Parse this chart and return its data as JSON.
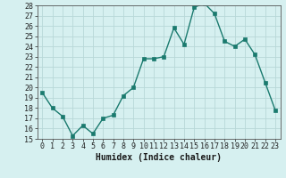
{
  "x": [
    0,
    1,
    2,
    3,
    4,
    5,
    6,
    7,
    8,
    9,
    10,
    11,
    12,
    13,
    14,
    15,
    16,
    17,
    18,
    19,
    20,
    21,
    22,
    23
  ],
  "y": [
    19.5,
    18.0,
    17.2,
    15.3,
    16.3,
    15.5,
    17.0,
    17.3,
    19.2,
    20.0,
    22.8,
    22.8,
    23.0,
    25.8,
    24.2,
    27.8,
    28.2,
    27.2,
    24.5,
    24.0,
    24.7,
    23.2,
    20.5,
    17.8
  ],
  "line_color": "#1a7a6e",
  "bg_color": "#d6f0f0",
  "grid_color": "#b8d8d8",
  "xlabel": "Humidex (Indice chaleur)",
  "ylim_min": 15,
  "ylim_max": 28,
  "xlim_min": -0.5,
  "xlim_max": 23.5,
  "yticks": [
    15,
    16,
    17,
    18,
    19,
    20,
    21,
    22,
    23,
    24,
    25,
    26,
    27,
    28
  ],
  "xtick_labels": [
    "0",
    "1",
    "2",
    "3",
    "4",
    "5",
    "6",
    "7",
    "8",
    "9",
    "10",
    "11",
    "12",
    "13",
    "14",
    "15",
    "16",
    "17",
    "18",
    "19",
    "20",
    "21",
    "22",
    "23"
  ],
  "marker_size": 2.5,
  "line_width": 1.0,
  "tick_fontsize": 6.0,
  "xlabel_fontsize": 7.0
}
